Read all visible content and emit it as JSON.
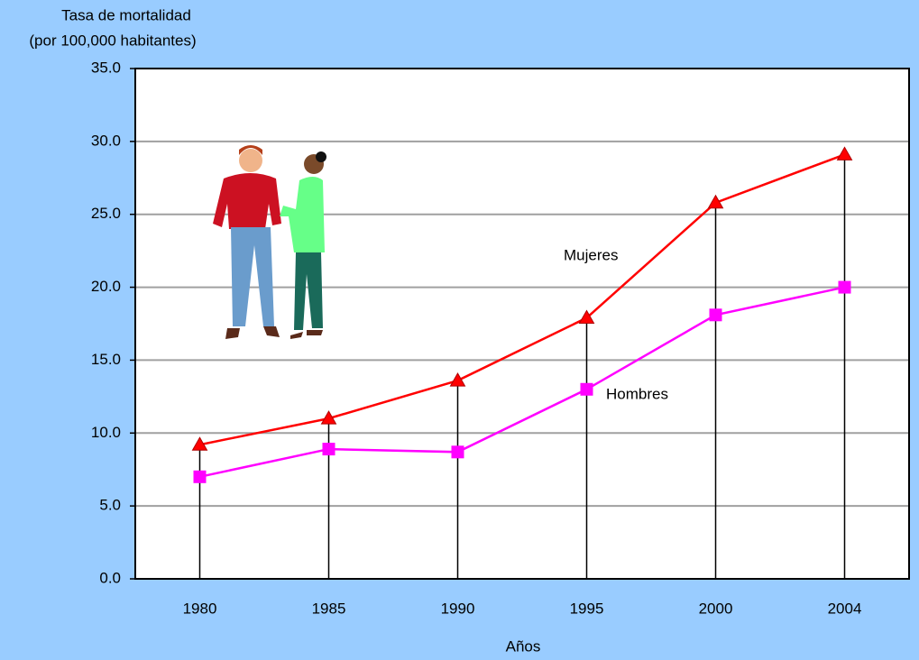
{
  "chart_data": {
    "type": "line",
    "y_label": [
      "Tasa de mortalidad",
      "(por 100,000 habitantes)"
    ],
    "x_label": "Años",
    "categories": [
      "1980",
      "1985",
      "1990",
      "1995",
      "2000",
      "2004"
    ],
    "series": [
      {
        "name": "Mujeres",
        "color": "#ff0000",
        "marker": "triangle",
        "values": [
          9.2,
          11.0,
          13.6,
          17.9,
          25.8,
          29.1
        ]
      },
      {
        "name": "Hombres",
        "color": "#ff00ff",
        "marker": "square",
        "values": [
          7.0,
          8.9,
          8.7,
          13.0,
          18.1,
          20.0
        ]
      }
    ],
    "ylim": [
      0,
      35
    ],
    "yticks": [
      {
        "value": 0,
        "label": "0.0"
      },
      {
        "value": 5,
        "label": "5.0"
      },
      {
        "value": 10,
        "label": "10.0"
      },
      {
        "value": 15,
        "label": "15.0"
      },
      {
        "value": 20,
        "label": "20.0"
      },
      {
        "value": 25,
        "label": "25.0"
      },
      {
        "value": 30,
        "label": "30.0"
      },
      {
        "value": 35,
        "label": "35.0"
      }
    ],
    "grid": true,
    "drop_lines": true
  }
}
